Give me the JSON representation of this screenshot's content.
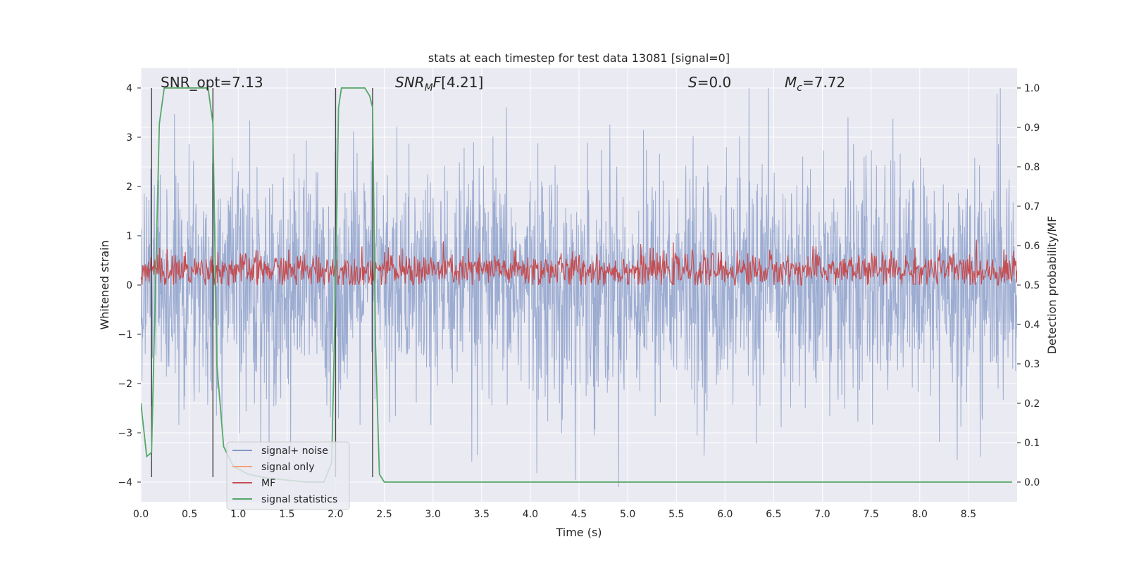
{
  "chart_data": {
    "type": "line",
    "title": "stats at each timestep for test data 13081 [signal=0]",
    "xlabel": "Time (s)",
    "ylabel": "Whitened strain",
    "ylabel_right": "Detection probability/MF",
    "xlim": [
      0.0,
      9.0
    ],
    "ylim": [
      -4.4,
      4.4
    ],
    "ylim_right": [
      -0.05,
      1.05
    ],
    "xticks": [
      "0.0",
      "0.5",
      "1.0",
      "1.5",
      "2.0",
      "2.5",
      "3.0",
      "3.5",
      "4.0",
      "4.5",
      "5.0",
      "5.5",
      "6.0",
      "6.5",
      "7.0",
      "7.5",
      "8.0",
      "8.5"
    ],
    "yticks": [
      "−4",
      "−3",
      "−2",
      "−1",
      "0",
      "1",
      "2",
      "3",
      "4"
    ],
    "yticks_right": [
      "0.0",
      "0.1",
      "0.2",
      "0.3",
      "0.4",
      "0.5",
      "0.6",
      "0.7",
      "0.8",
      "0.9",
      "1.0"
    ],
    "grid": true,
    "legend_position": "lower-left",
    "annotations": [
      {
        "label": "SNR_opt",
        "text": "SNR_opt=7.13"
      },
      {
        "label": "SNR_MF",
        "text": "[4.21]"
      },
      {
        "label": "S",
        "text": "=0.0"
      },
      {
        "label": "M_c",
        "text": "=7.72"
      }
    ],
    "vertical_markers_x": [
      0.11,
      0.74,
      2.0,
      2.38
    ],
    "series": [
      {
        "name": "signal+ noise",
        "color": "#8197c6",
        "description": "noise band approx ±2.5 with spikes to ±4",
        "axis": "left"
      },
      {
        "name": "signal only",
        "color": "#f2a27b",
        "axis": "left",
        "values": []
      },
      {
        "name": "MF",
        "color": "#c44e52",
        "axis": "right",
        "range": [
          0.5,
          0.6
        ]
      },
      {
        "name": "signal statistics",
        "color": "#55a868",
        "axis": "right",
        "x": [
          0.0,
          0.06,
          0.11,
          0.15,
          0.19,
          0.24,
          0.3,
          0.4,
          0.55,
          0.69,
          0.74,
          0.78,
          0.85,
          0.95,
          1.1,
          1.3,
          1.5,
          1.7,
          1.88,
          1.96,
          2.0,
          2.03,
          2.06,
          2.15,
          2.3,
          2.35,
          2.38,
          2.41,
          2.45,
          2.5,
          3.0,
          4.0,
          5.0,
          6.0,
          7.0,
          8.0,
          8.95
        ],
        "values": [
          0.2,
          0.065,
          0.075,
          0.5,
          0.91,
          1.0,
          1.0,
          1.0,
          1.0,
          1.0,
          0.91,
          0.3,
          0.09,
          0.04,
          0.02,
          0.01,
          0.005,
          0.0,
          0.0,
          0.05,
          0.5,
          0.95,
          1.0,
          1.0,
          1.0,
          0.98,
          0.95,
          0.35,
          0.02,
          0.0,
          0.0,
          0.0,
          0.0,
          0.0,
          0.0,
          0.0,
          0.0
        ]
      }
    ]
  },
  "colors": {
    "plot_bg": "#eaeaf2",
    "grid": "#ffffff",
    "noise": "#8197c6",
    "signal_only": "#f2a27b",
    "mf": "#c44e52",
    "stats": "#55a868",
    "marker": "#444444"
  }
}
